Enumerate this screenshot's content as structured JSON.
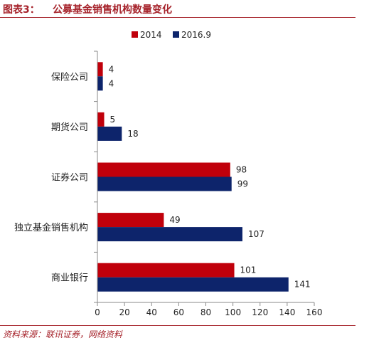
{
  "header": {
    "figure_label": "图表3：",
    "title": "公募基金销售机构数量变化"
  },
  "source": "资料来源：联讯证券，网络资料",
  "colors": {
    "series_2014": "#c0000b",
    "series_2016_9": "#0d246b",
    "accent": "#a6232b"
  },
  "chart_data": {
    "type": "bar",
    "orientation": "horizontal",
    "categories": [
      "保险公司",
      "期货公司",
      "证券公司",
      "独立基金销售机构",
      "商业银行"
    ],
    "series": [
      {
        "name": "2014",
        "values": [
          4,
          5,
          98,
          49,
          101
        ]
      },
      {
        "name": "2016.9",
        "values": [
          4,
          18,
          99,
          107,
          141
        ]
      }
    ],
    "xlim": [
      0,
      160
    ],
    "xticks": [
      "0",
      "20",
      "40",
      "60",
      "80",
      "100",
      "120",
      "140",
      "160"
    ],
    "legend_position": "top",
    "grid": false
  }
}
